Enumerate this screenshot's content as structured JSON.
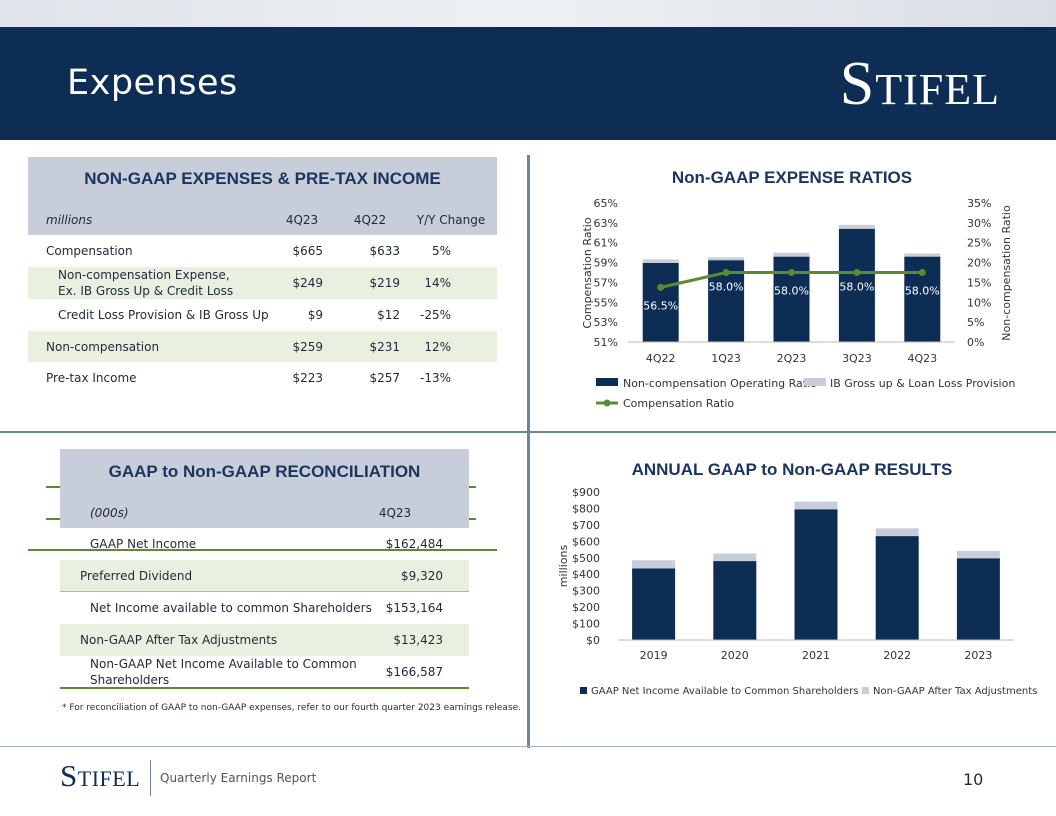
{
  "header": {
    "title": "Expenses",
    "logo": "Stifel"
  },
  "table1": {
    "title": "NON-GAAP EXPENSES & PRE-TAX INCOME",
    "columns": [
      "millions",
      "4Q23",
      "4Q22",
      "Y/Y Change"
    ],
    "rows": [
      {
        "label": "Compensation",
        "label2": "",
        "q23": "$665",
        "q22": "$633",
        "chg": "5%"
      },
      {
        "label": "Non-compensation Expense,",
        "label2": "Ex. IB Gross Up & Credit Loss",
        "q23": "$249",
        "q22": "$219",
        "chg": "14%"
      },
      {
        "label": "Credit Loss Provision & IB Gross Up",
        "label2": "",
        "q23": "$9",
        "q22": "$12",
        "chg": "-25%"
      },
      {
        "label": "Non-compensation",
        "label2": "",
        "q23": "$259",
        "q22": "$231",
        "chg": "12%"
      },
      {
        "label": "Pre-tax Income",
        "label2": "",
        "q23": "$223",
        "q22": "$257",
        "chg": "-13%"
      }
    ]
  },
  "table2": {
    "title": "GAAP to Non-GAAP RECONCILIATION",
    "columns": [
      "(000s)",
      "4Q23"
    ],
    "rows": [
      {
        "label": "GAAP Net Income",
        "label2": "",
        "value": "$162,484"
      },
      {
        "label": "Preferred Dividend",
        "label2": "",
        "value": "$9,320"
      },
      {
        "label": "Net Income available to common Shareholders",
        "label2": "",
        "value": "$153,164"
      },
      {
        "label": "Non-GAAP After Tax Adjustments",
        "label2": "",
        "value": "$13,423"
      },
      {
        "label": "Non-GAAP Net Income Available to Common",
        "label2": "Shareholders",
        "value": "$166,587"
      }
    ],
    "footnote": "* For reconciliation of GAAP to non-GAAP expenses, refer to our fourth quarter 2023 earnings release."
  },
  "chart_data": [
    {
      "type": "bar",
      "title": "Non-GAAP EXPENSE RATIOS",
      "categories": [
        "4Q22",
        "1Q23",
        "2Q23",
        "3Q23",
        "4Q23"
      ],
      "ylabel": "Compensation Ratio",
      "y2label": "Non-compensation Ratio",
      "ylim": [
        51,
        65
      ],
      "yticks": [
        "51%",
        "53%",
        "55%",
        "57%",
        "59%",
        "61%",
        "63%",
        "65%"
      ],
      "y2lim": [
        0,
        35
      ],
      "y2ticks": [
        "0%",
        "5%",
        "10%",
        "15%",
        "20%",
        "25%",
        "30%",
        "35%"
      ],
      "series": [
        {
          "name": "Non-compensation Operating Ratio",
          "kind": "bar",
          "axis": "y2",
          "values": [
            19.9,
            20.6,
            21.5,
            28.5,
            21.5
          ]
        },
        {
          "name": "IB Gross up & Loan Loss Provision",
          "kind": "bar",
          "axis": "y2",
          "values": [
            0.9,
            0.7,
            1.0,
            1.0,
            0.8
          ]
        },
        {
          "name": "Compensation Ratio",
          "kind": "line",
          "axis": "y",
          "values": [
            56.5,
            58.0,
            58.0,
            58.0,
            58.0
          ],
          "labels": [
            "56.5%",
            "58.0%",
            "58.0%",
            "58.0%",
            "58.0%"
          ]
        }
      ],
      "colors": {
        "bar": "#0d2d55",
        "stack": "#c7ced9",
        "line": "#5b8a32"
      }
    },
    {
      "type": "bar",
      "title": "ANNUAL GAAP to Non-GAAP RESULTS",
      "categories": [
        "2019",
        "2020",
        "2021",
        "2022",
        "2023"
      ],
      "ylabel": "millions",
      "ylim": [
        0,
        900
      ],
      "yticks": [
        "$0",
        "$100",
        "$200",
        "$300",
        "$400",
        "$500",
        "$600",
        "$700",
        "$800",
        "$900"
      ],
      "series": [
        {
          "name": "GAAP Net Income Available to Common Shareholders",
          "values": [
            435,
            480,
            795,
            632,
            497
          ]
        },
        {
          "name": "Non-GAAP After Tax Adjustments",
          "values": [
            50,
            46,
            46,
            47,
            44
          ]
        }
      ],
      "colors": {
        "bar": "#0d2d55",
        "stack": "#c7ced9"
      }
    }
  ],
  "footer": {
    "logo": "Stifel",
    "text": "Quarterly Earnings Report",
    "page": "10"
  }
}
